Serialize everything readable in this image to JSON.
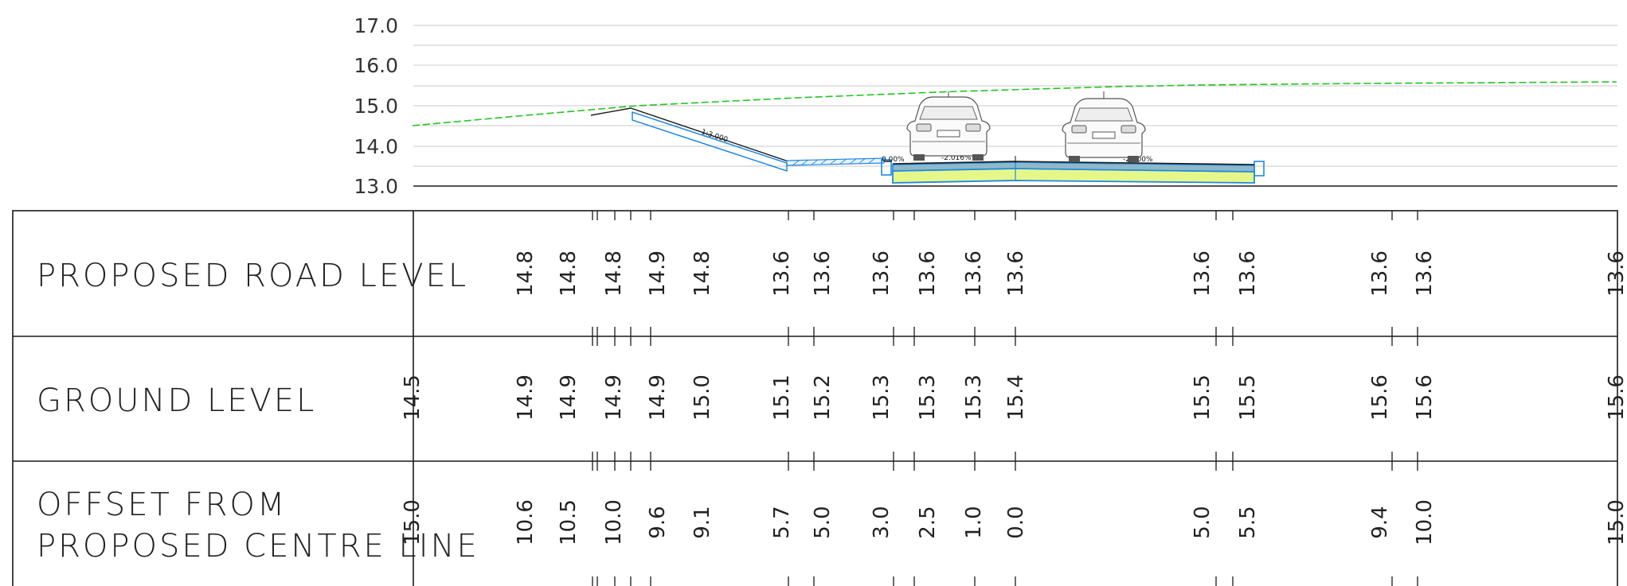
{
  "levels": [
    "17.0",
    "16.0",
    "15.0",
    "14.0",
    "13.0"
  ],
  "slope_label": "1:3.000",
  "crossfalls": [
    "0.00%",
    "-2.016%",
    "-2.000%"
  ],
  "rows": {
    "proposed": {
      "title": "PROPOSED ROAD LEVEL",
      "values": [
        "14.8",
        "14.8",
        "14.8",
        "14.9",
        "14.8",
        "13.6",
        "13.6",
        "13.6",
        "13.6",
        "13.6",
        "13.6",
        "13.6",
        "13.6",
        "13.6",
        "13.6",
        "13.6"
      ]
    },
    "ground": {
      "title": "GROUND LEVEL",
      "values": [
        "14.5",
        "14.9",
        "14.9",
        "14.9",
        "14.9",
        "15.0",
        "15.1",
        "15.2",
        "15.3",
        "15.3",
        "15.3",
        "15.4",
        "15.5",
        "15.5",
        "15.6",
        "15.6",
        "15.6"
      ]
    },
    "offset": {
      "title_line1": "OFFSET FROM",
      "title_line2": "PROPOSED CENTRE LINE",
      "values": [
        "15.0",
        "10.6",
        "10.5",
        "10.0",
        "9.6",
        "9.1",
        "5.7",
        "5.0",
        "3.0",
        "2.5",
        "1.0",
        "0.0",
        "5.0",
        "5.5",
        "9.4",
        "10.0",
        "15.0"
      ]
    }
  },
  "colors": {
    "ground_line": "#22c422",
    "pavement_outline": "#1e88e5",
    "subbase_fill": "#e6f78a",
    "grid": "#c8c8c8",
    "ink": "#1a1a1a"
  }
}
